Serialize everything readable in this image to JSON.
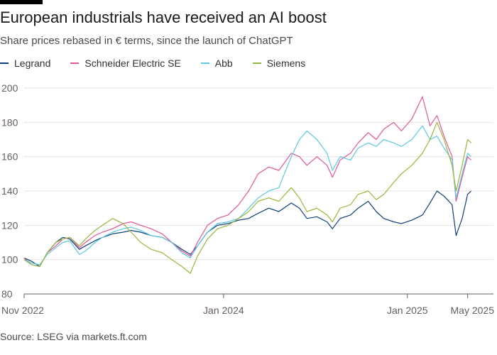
{
  "title": "European industrials have received an AI boost",
  "subtitle": "Share prices rebased in € terms, since the launch of ChatGPT",
  "source": "Source: LSEG via markets.ft.com",
  "chart_data": {
    "type": "line",
    "ylim": [
      80,
      200
    ],
    "yticks": [
      80,
      100,
      120,
      140,
      160,
      180,
      200
    ],
    "xlim": [
      "2022-11-30",
      "2025-05-10"
    ],
    "xticks": [
      {
        "label": "Nov 2022",
        "date": "2022-11-30"
      },
      {
        "label": "Jan 2024",
        "date": "2024-01-01"
      },
      {
        "label": "Jan 2025",
        "date": "2025-01-01"
      },
      {
        "label": "May 2025",
        "date": "2025-05-01"
      }
    ],
    "grid": true,
    "legend_position": "top-left",
    "series": [
      {
        "name": "Legrand",
        "color": "#0f3d7a",
        "points": [
          [
            "2022-11-30",
            101
          ],
          [
            "2022-12-15",
            99
          ],
          [
            "2022-12-31",
            96
          ],
          [
            "2023-01-15",
            104
          ],
          [
            "2023-02-01",
            110
          ],
          [
            "2023-02-15",
            113
          ],
          [
            "2023-03-01",
            112
          ],
          [
            "2023-03-20",
            106
          ],
          [
            "2023-04-01",
            108
          ],
          [
            "2023-04-20",
            111
          ],
          [
            "2023-05-05",
            113
          ],
          [
            "2023-05-25",
            115
          ],
          [
            "2023-06-15",
            116
          ],
          [
            "2023-07-01",
            117
          ],
          [
            "2023-07-20",
            116
          ],
          [
            "2023-08-10",
            114
          ],
          [
            "2023-09-01",
            113
          ],
          [
            "2023-09-20",
            110
          ],
          [
            "2023-10-10",
            106
          ],
          [
            "2023-10-27",
            103
          ],
          [
            "2023-11-10",
            108
          ],
          [
            "2023-11-30",
            116
          ],
          [
            "2023-12-20",
            120
          ],
          [
            "2024-01-10",
            121
          ],
          [
            "2024-01-31",
            123
          ],
          [
            "2024-02-20",
            124
          ],
          [
            "2024-03-10",
            127
          ],
          [
            "2024-03-31",
            130
          ],
          [
            "2024-04-20",
            128
          ],
          [
            "2024-05-15",
            133
          ],
          [
            "2024-05-31",
            130
          ],
          [
            "2024-06-15",
            124
          ],
          [
            "2024-07-05",
            125
          ],
          [
            "2024-07-25",
            122
          ],
          [
            "2024-08-05",
            118
          ],
          [
            "2024-08-20",
            124
          ],
          [
            "2024-09-10",
            126
          ],
          [
            "2024-09-25",
            130
          ],
          [
            "2024-10-15",
            134
          ],
          [
            "2024-10-31",
            128
          ],
          [
            "2024-11-15",
            124
          ],
          [
            "2024-12-05",
            122
          ],
          [
            "2024-12-20",
            121
          ],
          [
            "2025-01-10",
            123
          ],
          [
            "2025-01-31",
            126
          ],
          [
            "2025-02-15",
            133
          ],
          [
            "2025-03-01",
            140
          ],
          [
            "2025-03-15",
            137
          ],
          [
            "2025-03-31",
            132
          ],
          [
            "2025-04-08",
            114
          ],
          [
            "2025-04-20",
            124
          ],
          [
            "2025-05-01",
            138
          ],
          [
            "2025-05-08",
            140
          ]
        ]
      },
      {
        "name": "Schneider Electric SE",
        "color": "#e0569a",
        "points": [
          [
            "2022-11-30",
            101
          ],
          [
            "2022-12-15",
            97
          ],
          [
            "2022-12-31",
            96
          ],
          [
            "2023-01-15",
            104
          ],
          [
            "2023-02-01",
            108
          ],
          [
            "2023-02-15",
            112
          ],
          [
            "2023-03-01",
            113
          ],
          [
            "2023-03-20",
            107
          ],
          [
            "2023-04-01",
            110
          ],
          [
            "2023-04-20",
            114
          ],
          [
            "2023-05-05",
            116
          ],
          [
            "2023-05-25",
            118
          ],
          [
            "2023-06-15",
            121
          ],
          [
            "2023-07-01",
            122
          ],
          [
            "2023-07-20",
            120
          ],
          [
            "2023-08-10",
            118
          ],
          [
            "2023-09-01",
            115
          ],
          [
            "2023-09-20",
            110
          ],
          [
            "2023-10-10",
            105
          ],
          [
            "2023-10-27",
            102
          ],
          [
            "2023-11-10",
            110
          ],
          [
            "2023-11-30",
            120
          ],
          [
            "2023-12-20",
            124
          ],
          [
            "2024-01-10",
            126
          ],
          [
            "2024-01-31",
            132
          ],
          [
            "2024-02-20",
            140
          ],
          [
            "2024-03-10",
            150
          ],
          [
            "2024-03-31",
            154
          ],
          [
            "2024-04-20",
            152
          ],
          [
            "2024-05-15",
            162
          ],
          [
            "2024-05-31",
            160
          ],
          [
            "2024-06-15",
            155
          ],
          [
            "2024-07-05",
            160
          ],
          [
            "2024-07-25",
            155
          ],
          [
            "2024-08-05",
            148
          ],
          [
            "2024-08-20",
            158
          ],
          [
            "2024-09-10",
            162
          ],
          [
            "2024-09-25",
            168
          ],
          [
            "2024-10-15",
            174
          ],
          [
            "2024-10-31",
            170
          ],
          [
            "2024-11-15",
            176
          ],
          [
            "2024-12-05",
            180
          ],
          [
            "2024-12-20",
            175
          ],
          [
            "2025-01-10",
            182
          ],
          [
            "2025-01-31",
            195
          ],
          [
            "2025-02-15",
            178
          ],
          [
            "2025-03-01",
            184
          ],
          [
            "2025-03-15",
            172
          ],
          [
            "2025-03-31",
            160
          ],
          [
            "2025-04-08",
            134
          ],
          [
            "2025-04-20",
            148
          ],
          [
            "2025-05-01",
            160
          ],
          [
            "2025-05-08",
            158
          ]
        ]
      },
      {
        "name": "Abb",
        "color": "#5cc9e3",
        "points": [
          [
            "2022-11-30",
            100
          ],
          [
            "2022-12-15",
            98
          ],
          [
            "2022-12-31",
            97
          ],
          [
            "2023-01-15",
            103
          ],
          [
            "2023-02-01",
            107
          ],
          [
            "2023-02-15",
            110
          ],
          [
            "2023-03-01",
            111
          ],
          [
            "2023-03-20",
            103
          ],
          [
            "2023-04-01",
            105
          ],
          [
            "2023-04-20",
            110
          ],
          [
            "2023-05-05",
            113
          ],
          [
            "2023-05-25",
            116
          ],
          [
            "2023-06-15",
            118
          ],
          [
            "2023-07-01",
            119
          ],
          [
            "2023-07-20",
            117
          ],
          [
            "2023-08-10",
            114
          ],
          [
            "2023-09-01",
            113
          ],
          [
            "2023-09-20",
            110
          ],
          [
            "2023-10-10",
            104
          ],
          [
            "2023-10-27",
            101
          ],
          [
            "2023-11-10",
            108
          ],
          [
            "2023-11-30",
            116
          ],
          [
            "2023-12-20",
            121
          ],
          [
            "2024-01-10",
            122
          ],
          [
            "2024-01-31",
            124
          ],
          [
            "2024-02-20",
            130
          ],
          [
            "2024-03-10",
            136
          ],
          [
            "2024-03-31",
            140
          ],
          [
            "2024-04-20",
            142
          ],
          [
            "2024-05-15",
            160
          ],
          [
            "2024-05-31",
            170
          ],
          [
            "2024-06-15",
            175
          ],
          [
            "2024-07-05",
            170
          ],
          [
            "2024-07-25",
            162
          ],
          [
            "2024-08-05",
            152
          ],
          [
            "2024-08-20",
            160
          ],
          [
            "2024-09-10",
            158
          ],
          [
            "2024-09-25",
            165
          ],
          [
            "2024-10-15",
            168
          ],
          [
            "2024-10-31",
            166
          ],
          [
            "2024-11-15",
            170
          ],
          [
            "2024-12-05",
            168
          ],
          [
            "2024-12-20",
            166
          ],
          [
            "2025-01-10",
            170
          ],
          [
            "2025-01-31",
            178
          ],
          [
            "2025-02-15",
            170
          ],
          [
            "2025-03-01",
            172
          ],
          [
            "2025-03-15",
            165
          ],
          [
            "2025-03-31",
            158
          ],
          [
            "2025-04-08",
            136
          ],
          [
            "2025-04-20",
            150
          ],
          [
            "2025-05-01",
            162
          ],
          [
            "2025-05-08",
            160
          ]
        ]
      },
      {
        "name": "Siemens",
        "color": "#96b83a",
        "points": [
          [
            "2022-11-30",
            100
          ],
          [
            "2022-12-15",
            97
          ],
          [
            "2022-12-31",
            96
          ],
          [
            "2023-01-15",
            104
          ],
          [
            "2023-02-01",
            110
          ],
          [
            "2023-02-15",
            112
          ],
          [
            "2023-03-01",
            113
          ],
          [
            "2023-03-20",
            108
          ],
          [
            "2023-04-01",
            112
          ],
          [
            "2023-04-20",
            117
          ],
          [
            "2023-05-05",
            120
          ],
          [
            "2023-05-25",
            124
          ],
          [
            "2023-06-15",
            121
          ],
          [
            "2023-07-01",
            116
          ],
          [
            "2023-07-20",
            110
          ],
          [
            "2023-08-10",
            106
          ],
          [
            "2023-09-01",
            104
          ],
          [
            "2023-09-20",
            100
          ],
          [
            "2023-10-10",
            96
          ],
          [
            "2023-10-27",
            92
          ],
          [
            "2023-11-10",
            102
          ],
          [
            "2023-11-30",
            112
          ],
          [
            "2023-12-20",
            118
          ],
          [
            "2024-01-10",
            120
          ],
          [
            "2024-01-31",
            124
          ],
          [
            "2024-02-20",
            128
          ],
          [
            "2024-03-10",
            134
          ],
          [
            "2024-03-31",
            136
          ],
          [
            "2024-04-20",
            134
          ],
          [
            "2024-05-15",
            142
          ],
          [
            "2024-05-31",
            136
          ],
          [
            "2024-06-15",
            128
          ],
          [
            "2024-07-05",
            130
          ],
          [
            "2024-07-25",
            126
          ],
          [
            "2024-08-05",
            122
          ],
          [
            "2024-08-20",
            130
          ],
          [
            "2024-09-10",
            132
          ],
          [
            "2024-09-25",
            138
          ],
          [
            "2024-10-15",
            140
          ],
          [
            "2024-10-31",
            135
          ],
          [
            "2024-11-15",
            138
          ],
          [
            "2024-12-05",
            145
          ],
          [
            "2024-12-20",
            150
          ],
          [
            "2025-01-10",
            155
          ],
          [
            "2025-01-31",
            162
          ],
          [
            "2025-02-15",
            170
          ],
          [
            "2025-03-01",
            180
          ],
          [
            "2025-03-15",
            170
          ],
          [
            "2025-03-31",
            155
          ],
          [
            "2025-04-08",
            140
          ],
          [
            "2025-04-20",
            155
          ],
          [
            "2025-05-01",
            170
          ],
          [
            "2025-05-08",
            168
          ]
        ]
      }
    ]
  }
}
